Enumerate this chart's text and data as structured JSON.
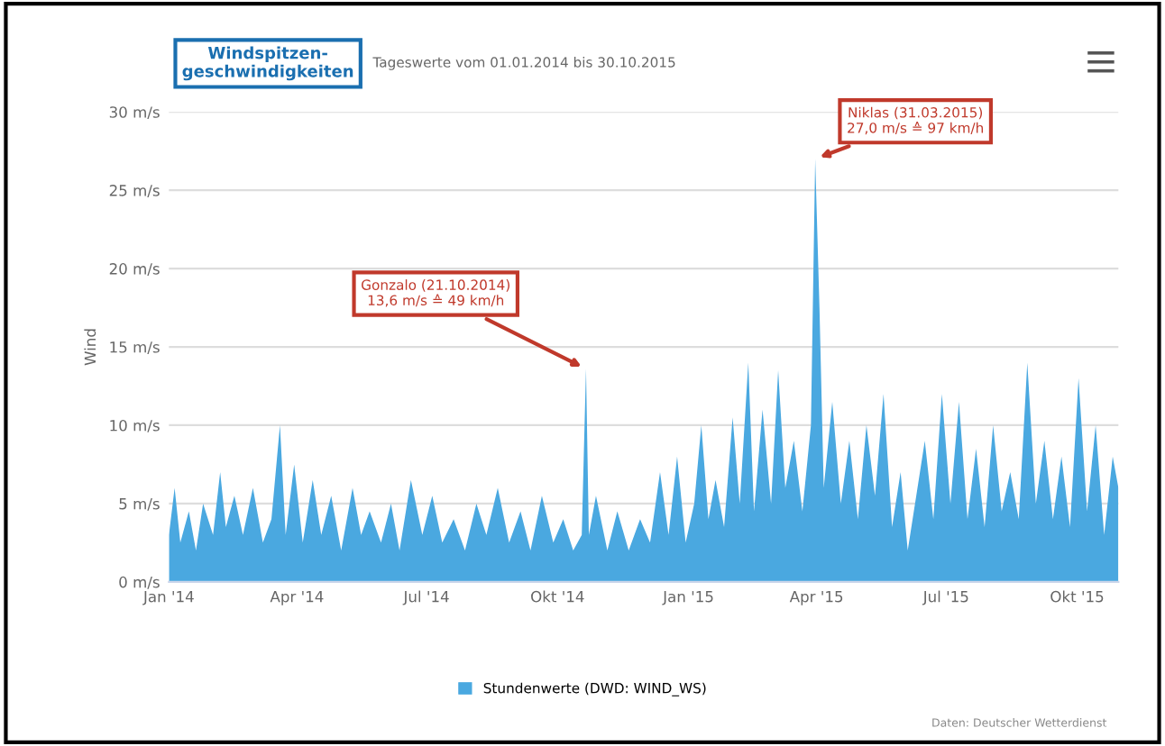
{
  "chart_data": {
    "type": "area",
    "title": "Windspitzen-\ngeschwindigkeiten",
    "subtitle": "Tageswerte vom 01.01.2014 bis 30.10.2015",
    "ylabel": "Wind",
    "x": [
      "2014-01-01",
      "2014-01-05",
      "2014-01-09",
      "2014-01-15",
      "2014-01-20",
      "2014-01-25",
      "2014-02-01",
      "2014-02-06",
      "2014-02-10",
      "2014-02-16",
      "2014-02-22",
      "2014-03-01",
      "2014-03-08",
      "2014-03-14",
      "2014-03-20",
      "2014-03-24",
      "2014-03-30",
      "2014-04-05",
      "2014-04-12",
      "2014-04-18",
      "2014-04-25",
      "2014-05-02",
      "2014-05-10",
      "2014-05-16",
      "2014-05-22",
      "2014-05-30",
      "2014-06-06",
      "2014-06-12",
      "2014-06-20",
      "2014-06-28",
      "2014-07-05",
      "2014-07-12",
      "2014-07-20",
      "2014-07-28",
      "2014-08-05",
      "2014-08-12",
      "2014-08-20",
      "2014-08-28",
      "2014-09-05",
      "2014-09-12",
      "2014-09-20",
      "2014-09-28",
      "2014-10-05",
      "2014-10-12",
      "2014-10-18",
      "2014-10-21",
      "2014-10-23",
      "2014-10-28",
      "2014-11-05",
      "2014-11-12",
      "2014-11-20",
      "2014-11-28",
      "2014-12-05",
      "2014-12-12",
      "2014-12-18",
      "2014-12-24",
      "2014-12-30",
      "2015-01-05",
      "2015-01-10",
      "2015-01-15",
      "2015-01-20",
      "2015-01-26",
      "2015-02-01",
      "2015-02-06",
      "2015-02-12",
      "2015-02-16",
      "2015-02-22",
      "2015-02-28",
      "2015-03-05",
      "2015-03-10",
      "2015-03-16",
      "2015-03-22",
      "2015-03-28",
      "2015-03-31",
      "2015-04-03",
      "2015-04-06",
      "2015-04-12",
      "2015-04-18",
      "2015-04-24",
      "2015-04-30",
      "2015-05-06",
      "2015-05-12",
      "2015-05-18",
      "2015-05-24",
      "2015-05-30",
      "2015-06-04",
      "2015-06-10",
      "2015-06-16",
      "2015-06-22",
      "2015-06-28",
      "2015-07-04",
      "2015-07-10",
      "2015-07-16",
      "2015-07-22",
      "2015-07-28",
      "2015-08-03",
      "2015-08-09",
      "2015-08-15",
      "2015-08-21",
      "2015-08-27",
      "2015-09-02",
      "2015-09-08",
      "2015-09-14",
      "2015-09-20",
      "2015-09-26",
      "2015-10-02",
      "2015-10-08",
      "2015-10-14",
      "2015-10-20",
      "2015-10-26",
      "2015-10-30"
    ],
    "series": [
      {
        "name": "Stundenwerte (DWD: WIND_WS)",
        "color": "#4aa8e0",
        "values": [
          3.0,
          6.0,
          2.5,
          4.5,
          2.0,
          5.0,
          3.0,
          7.0,
          3.5,
          5.5,
          3.0,
          6.0,
          2.5,
          4.0,
          10.0,
          3.0,
          7.5,
          2.5,
          6.5,
          3.0,
          5.5,
          2.0,
          6.0,
          3.0,
          4.5,
          2.5,
          5.0,
          2.0,
          6.5,
          3.0,
          5.5,
          2.5,
          4.0,
          2.0,
          5.0,
          3.0,
          6.0,
          2.5,
          4.5,
          2.0,
          5.5,
          2.5,
          4.0,
          2.0,
          3.0,
          13.6,
          3.0,
          5.5,
          2.0,
          4.5,
          2.0,
          4.0,
          2.5,
          7.0,
          3.0,
          8.0,
          2.5,
          5.0,
          10.0,
          4.0,
          6.5,
          3.5,
          10.5,
          5.0,
          14.0,
          4.5,
          11.0,
          5.0,
          13.5,
          6.0,
          9.0,
          4.5,
          10.0,
          27.0,
          17.5,
          6.0,
          11.5,
          5.0,
          9.0,
          4.0,
          10.0,
          5.5,
          12.0,
          3.5,
          7.0,
          2.0,
          5.5,
          9.0,
          4.0,
          12.0,
          5.0,
          11.5,
          4.0,
          8.5,
          3.5,
          10.0,
          4.5,
          7.0,
          4.0,
          14.0,
          5.0,
          9.0,
          4.0,
          8.0,
          3.5,
          13.0,
          4.5,
          10.0,
          3.0,
          8.0,
          6.0
        ]
      }
    ],
    "xlim": [
      "2014-01-01",
      "2015-10-30"
    ],
    "xticks": [
      {
        "value": "2014-01-01",
        "label": "Jan '14"
      },
      {
        "value": "2014-04-01",
        "label": "Apr '14"
      },
      {
        "value": "2014-07-01",
        "label": "Jul '14"
      },
      {
        "value": "2014-10-01",
        "label": "Okt '14"
      },
      {
        "value": "2015-01-01",
        "label": "Jan '15"
      },
      {
        "value": "2015-04-01",
        "label": "Apr '15"
      },
      {
        "value": "2015-07-01",
        "label": "Jul '15"
      },
      {
        "value": "2015-10-01",
        "label": "Okt '15"
      }
    ],
    "ylim": [
      0,
      30
    ],
    "yticks": [
      {
        "value": 0,
        "label": "0 m/s"
      },
      {
        "value": 5,
        "label": "5 m/s"
      },
      {
        "value": 10,
        "label": "10 m/s"
      },
      {
        "value": 15,
        "label": "15 m/s"
      },
      {
        "value": 20,
        "label": "20 m/s"
      },
      {
        "value": 25,
        "label": "25 m/s"
      },
      {
        "value": 30,
        "label": "30 m/s"
      }
    ],
    "grid": "y",
    "legend": "bottom",
    "annotations": [
      {
        "text": "Gonzalo (21.10.2014)\n13,6 m/s ≙ 49 km/h",
        "x": "2014-10-21",
        "y": 13.6
      },
      {
        "text": "Niklas (31.03.2015)\n27,0 m/s ≙ 97 km/h",
        "x": "2015-03-31",
        "y": 27.0
      },
      "Daten: Deutscher Wetterdienst"
    ]
  }
}
